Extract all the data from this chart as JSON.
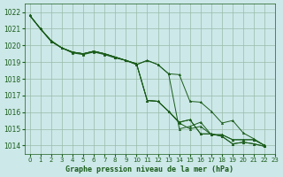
{
  "bg_color": "#cce8e8",
  "grid_color": "#99bbaa",
  "line_color": "#1a5c1a",
  "marker_color": "#1a5c1a",
  "xlabel": "Graphe pression niveau de la mer (hPa)",
  "xlabel_color": "#1a5c1a",
  "tick_color": "#1a5c1a",
  "xlim": [
    -0.5,
    23
  ],
  "ylim": [
    1013.5,
    1022.5
  ],
  "yticks": [
    1014,
    1015,
    1016,
    1017,
    1018,
    1019,
    1020,
    1021,
    1022
  ],
  "xticks": [
    0,
    1,
    2,
    3,
    4,
    5,
    6,
    7,
    8,
    9,
    10,
    11,
    12,
    13,
    14,
    15,
    16,
    17,
    18,
    19,
    20,
    21,
    22,
    23
  ],
  "series": [
    [
      1021.8,
      1021.0,
      1020.3,
      1019.85,
      1019.55,
      1019.45,
      1019.6,
      1019.45,
      1019.25,
      1019.1,
      1018.85,
      1019.1,
      1018.85,
      1018.3,
      1018.25,
      1016.65,
      1016.6,
      1016.05,
      1015.35,
      1015.5,
      1014.75,
      1014.4,
      1014.0
    ],
    [
      1021.8,
      1021.0,
      1020.25,
      1019.85,
      1019.6,
      1019.5,
      1019.65,
      1019.5,
      1019.3,
      1019.1,
      1018.9,
      1016.7,
      1016.65,
      1016.05,
      1015.4,
      1015.55,
      1014.7,
      1014.7,
      1014.55,
      1014.1,
      1014.2,
      1014.1,
      1013.95
    ],
    [
      1021.8,
      1021.0,
      1020.25,
      1019.85,
      1019.6,
      1019.5,
      1019.65,
      1019.5,
      1019.3,
      1019.1,
      1018.9,
      1016.7,
      1016.65,
      1016.05,
      1015.4,
      1015.55,
      1014.7,
      1014.7,
      1014.55,
      1014.1,
      1014.2,
      1014.1,
      1013.95
    ],
    [
      1021.8,
      1021.0,
      1020.25,
      1019.85,
      1019.6,
      1019.5,
      1019.65,
      1019.5,
      1019.3,
      1019.1,
      1018.9,
      1016.7,
      1016.65,
      1016.05,
      1015.35,
      1015.0,
      1015.15,
      1014.65,
      1014.65,
      1014.35,
      1014.35,
      1014.35,
      1014.0
    ]
  ],
  "series_prominent": [
    1021.8,
    1021.0,
    1020.25,
    1019.85,
    1019.6,
    1019.5,
    1019.65,
    1019.5,
    1019.3,
    1019.1,
    1018.85,
    1019.1,
    1018.85,
    1018.3,
    1015.0,
    1015.15,
    1015.4,
    1014.65,
    1014.65,
    1014.35,
    1014.35,
    1014.35,
    1014.0
  ]
}
